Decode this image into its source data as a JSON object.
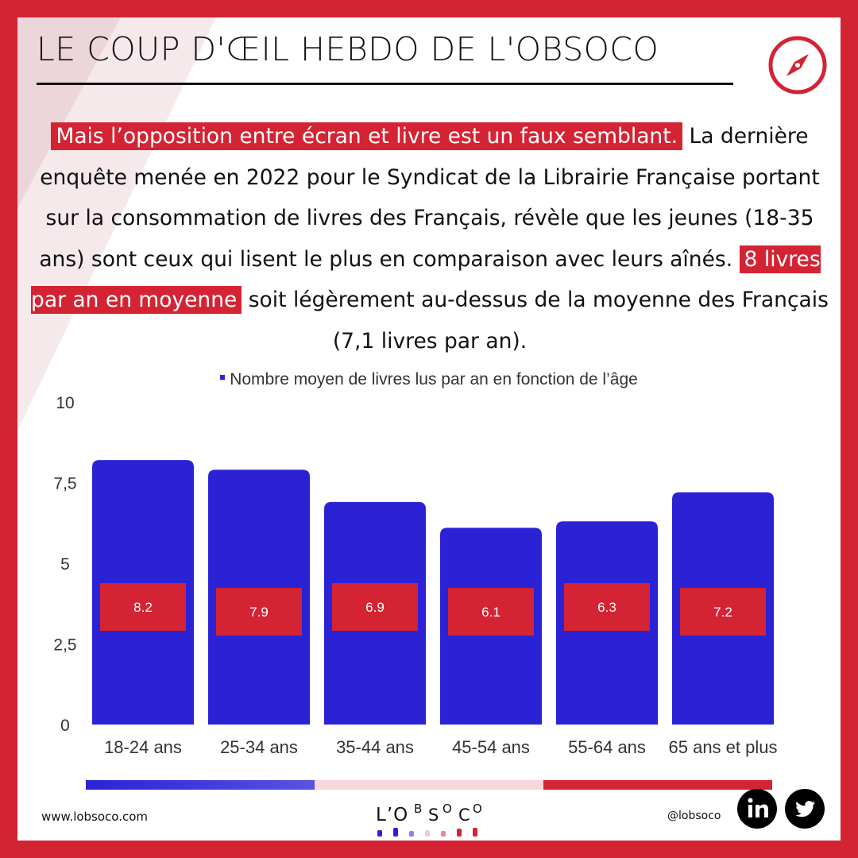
{
  "header": {
    "title": "LE COUP D'ŒIL HEBDO DE L'OBSOCO",
    "icon": "compass-icon"
  },
  "body": {
    "highlight1": "Mais l’opposition entre écran et livre est un faux semblant.",
    "text1": " La dernière enquête menée en 2022 pour le Syndicat de la Librairie Française portant sur la consommation de livres des Français, révèle que les jeunes (18-35 ans) sont ceux qui lisent le plus en comparaison avec leurs aînés. ",
    "highlight2": "8 livres par an en moyenne",
    "text2": " soit légèrement au-dessus de la moyenne des Français (7,1 livres par an)."
  },
  "chart_data": {
    "type": "bar",
    "title": "",
    "xlabel": "",
    "ylabel": "",
    "legend": "Nombre moyen de livres lus par an en fonction de l’âge",
    "legend_position": "top-center",
    "categories": [
      "18-24 ans",
      "25-34 ans",
      "35-44 ans",
      "45-54 ans",
      "55-64 ans",
      "65 ans et plus"
    ],
    "series": [
      {
        "name": "Nombre moyen de livres lus par an en fonction de l’âge",
        "values": [
          8.2,
          7.9,
          6.9,
          6.1,
          6.3,
          7.2
        ],
        "data_labels": [
          "8.2",
          "7.9",
          "6.9",
          "6.1",
          "6.3",
          "7.2"
        ]
      }
    ],
    "ylim": [
      0,
      10
    ],
    "yticks": [
      0,
      2.5,
      5,
      7.5,
      10
    ],
    "ytick_labels": [
      "0",
      "2,5",
      "5",
      "7,5",
      "10"
    ],
    "grid": false,
    "colors": {
      "bar": "#2b22d6",
      "label_box": "#d42333",
      "label_text": "#ffffff",
      "axis_text": "#333333",
      "stripe": [
        "#3b33d8",
        "#f7d6dc",
        "#d42333"
      ]
    }
  },
  "footer": {
    "website": "www.lobsoco.com",
    "handle": "@lobsoco",
    "logo_text": "L’OBSOCO",
    "social": [
      "linkedin-icon",
      "twitter-icon"
    ]
  },
  "colors": {
    "brand_red": "#d42333",
    "brand_blue": "#2b22d6",
    "text": "#111111"
  }
}
